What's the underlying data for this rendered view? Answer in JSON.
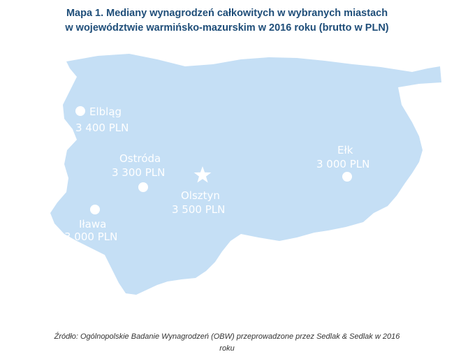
{
  "title": {
    "line1": "Mapa 1. Mediany wynagrodzeń całkowitych w wybranych miastach",
    "line2": "w województwie warmińsko-mazurskim w 2016 roku (brutto w PLN)"
  },
  "map": {
    "region_color": "#c5dff5",
    "marker_color": "#ffffff",
    "cities": [
      {
        "name": "Elbląg",
        "value": "3 400 PLN",
        "marker": "circle"
      },
      {
        "name": "Ostróda",
        "value": "3 300 PLN",
        "marker": "circle"
      },
      {
        "name": "Olsztyn",
        "value": "3 500 PLN",
        "marker": "star"
      },
      {
        "name": "Iława",
        "value": "3 000 PLN",
        "marker": "circle"
      },
      {
        "name": "Ełk",
        "value": "3 000 PLN",
        "marker": "circle"
      }
    ]
  },
  "source": {
    "line1": "Źródło: Ogólnopolskie Badanie Wynagrodzeń (OBW) przeprowadzone  przez Sedlak & Sedlak w 2016",
    "line2": "roku"
  }
}
